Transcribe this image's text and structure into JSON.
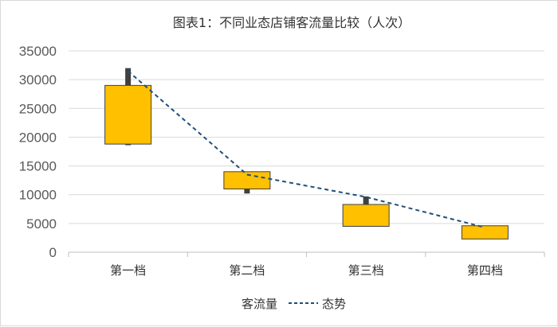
{
  "chart_data": {
    "type": "candlestick",
    "title": "图表1：不同业态店铺客流量比较（人次）",
    "xlabel": "",
    "ylabel": "",
    "categories": [
      "第一档",
      "第二档",
      "第三档",
      "第四档"
    ],
    "ylim": [
      0,
      35000
    ],
    "yticks": [
      "35000",
      "30000",
      "25000",
      "20000",
      "15000",
      "10000",
      "5000",
      "0"
    ],
    "grid": true,
    "series": [
      {
        "name": "客流量",
        "type": "box",
        "color": "#ffc000",
        "low": [
          18600,
          10200,
          4500,
          2300
        ],
        "open": [
          18800,
          11000,
          4500,
          2300
        ],
        "close": [
          29000,
          14000,
          8300,
          4600
        ],
        "high": [
          32000,
          14000,
          9700,
          4600
        ]
      },
      {
        "name": "态势",
        "type": "line",
        "style": "dashed",
        "color": "#1f4e79",
        "values": [
          31500,
          13500,
          9600,
          4300
        ]
      }
    ],
    "legend": {
      "position": "bottom",
      "items": [
        "客流量",
        "态势"
      ]
    }
  }
}
